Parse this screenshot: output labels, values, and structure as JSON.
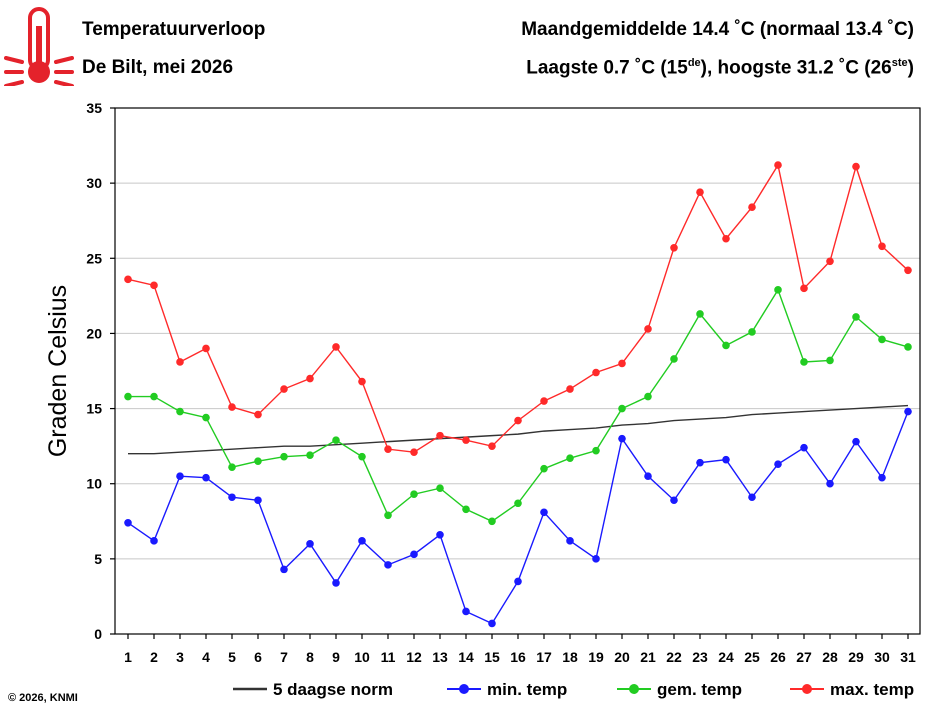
{
  "header": {
    "title": "Temperatuurverloop",
    "location": "De Bilt, mei 2026",
    "avg_line": "Maandgemiddelde 14.4 ˚C (normaal 13.4 ˚C)",
    "low_prefix": "Laagste 0.7 ˚C (15",
    "low_sup": "de",
    "high_prefix": "), hoogste 31.2 ˚C (26",
    "high_sup": "ste",
    "close": ")"
  },
  "footer": {
    "copyright": "© 2026, KNMI"
  },
  "icon": "thermometer-icon",
  "chart_data": {
    "type": "line",
    "ylabel": "Graden Celsius",
    "xlabel": "",
    "ylim": [
      0,
      35
    ],
    "yticks": [
      0,
      5,
      10,
      15,
      20,
      25,
      30,
      35
    ],
    "grid": true,
    "legend_placement": "bottom",
    "categories": [
      "1",
      "2",
      "3",
      "4",
      "5",
      "6",
      "7",
      "8",
      "9",
      "10",
      "11",
      "12",
      "13",
      "14",
      "15",
      "16",
      "17",
      "18",
      "19",
      "20",
      "21",
      "22",
      "23",
      "24",
      "25",
      "26",
      "27",
      "28",
      "29",
      "30",
      "31"
    ],
    "series": [
      {
        "name": "5 daagse norm",
        "color": "#333333",
        "markers": false,
        "values": [
          12.0,
          12.0,
          12.1,
          12.2,
          12.3,
          12.4,
          12.5,
          12.5,
          12.6,
          12.7,
          12.8,
          12.9,
          13.0,
          13.1,
          13.2,
          13.3,
          13.5,
          13.6,
          13.7,
          13.9,
          14.0,
          14.2,
          14.3,
          14.4,
          14.6,
          14.7,
          14.8,
          14.9,
          15.0,
          15.1,
          15.2
        ]
      },
      {
        "name": "min. temp",
        "color": "#1a1aff",
        "markers": true,
        "values": [
          7.4,
          6.2,
          10.5,
          10.4,
          9.1,
          8.9,
          4.3,
          6.0,
          3.4,
          6.2,
          4.6,
          5.3,
          6.6,
          1.5,
          0.7,
          3.5,
          8.1,
          6.2,
          5.0,
          13.0,
          10.5,
          8.9,
          11.4,
          11.6,
          9.1,
          11.3,
          12.4,
          10.0,
          12.8,
          10.4,
          14.8
        ]
      },
      {
        "name": "gem. temp",
        "color": "#22cc22",
        "markers": true,
        "values": [
          15.8,
          15.8,
          14.8,
          14.4,
          11.1,
          11.5,
          11.8,
          11.9,
          12.9,
          11.8,
          7.9,
          9.3,
          9.7,
          8.3,
          7.5,
          8.7,
          11.0,
          11.7,
          12.2,
          15.0,
          15.8,
          18.3,
          21.3,
          19.2,
          20.1,
          22.9,
          18.1,
          18.2,
          21.1,
          19.6,
          19.1
        ]
      },
      {
        "name": "max. temp",
        "color": "#ff2a2a",
        "markers": true,
        "values": [
          23.6,
          23.2,
          18.1,
          19.0,
          15.1,
          14.6,
          16.3,
          17.0,
          19.1,
          16.8,
          12.3,
          12.1,
          13.2,
          12.9,
          12.5,
          14.2,
          15.5,
          16.3,
          17.4,
          18.0,
          20.3,
          25.7,
          29.4,
          26.3,
          28.4,
          31.2,
          23.0,
          24.8,
          31.1,
          25.8,
          24.2
        ]
      }
    ]
  }
}
